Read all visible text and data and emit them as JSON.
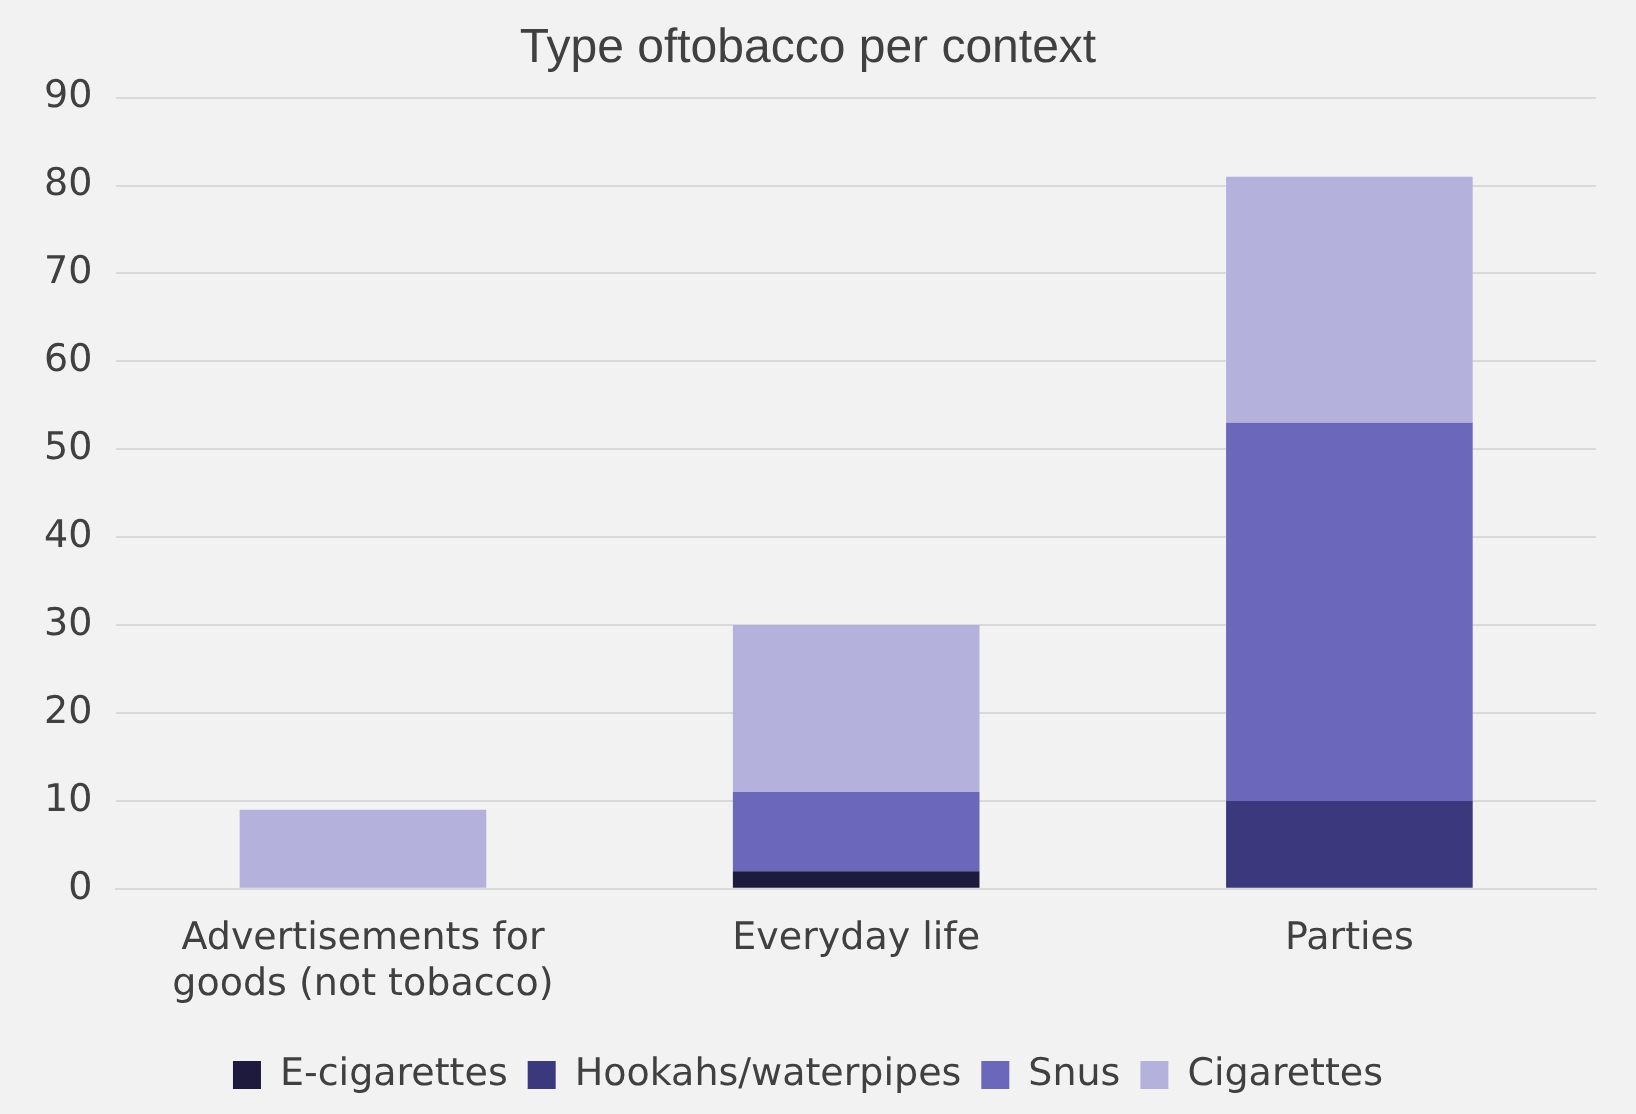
{
  "chart_data": {
    "type": "bar",
    "title": "Type oftobacco per context",
    "categories": [
      "Advertisements for goods (not tobacco)",
      "Everyday life",
      "Parties"
    ],
    "stacked": true,
    "series": [
      {
        "name": "E-cigarettes",
        "color": "#1e1a3e",
        "values": [
          0,
          2,
          0
        ]
      },
      {
        "name": "Hookahs/waterpipes",
        "color": "#3c387e",
        "values": [
          0,
          0,
          10
        ]
      },
      {
        "name": "Snus",
        "color": "#6b67bb",
        "values": [
          0,
          9,
          43
        ]
      },
      {
        "name": "Cigarettes",
        "color": "#b4b2dd",
        "values": [
          9,
          19,
          28
        ]
      }
    ],
    "ylim": [
      0,
      90
    ],
    "yticks": [
      0,
      10,
      20,
      30,
      40,
      50,
      60,
      70,
      80,
      90
    ],
    "grid": "y",
    "legend": "bottom"
  }
}
